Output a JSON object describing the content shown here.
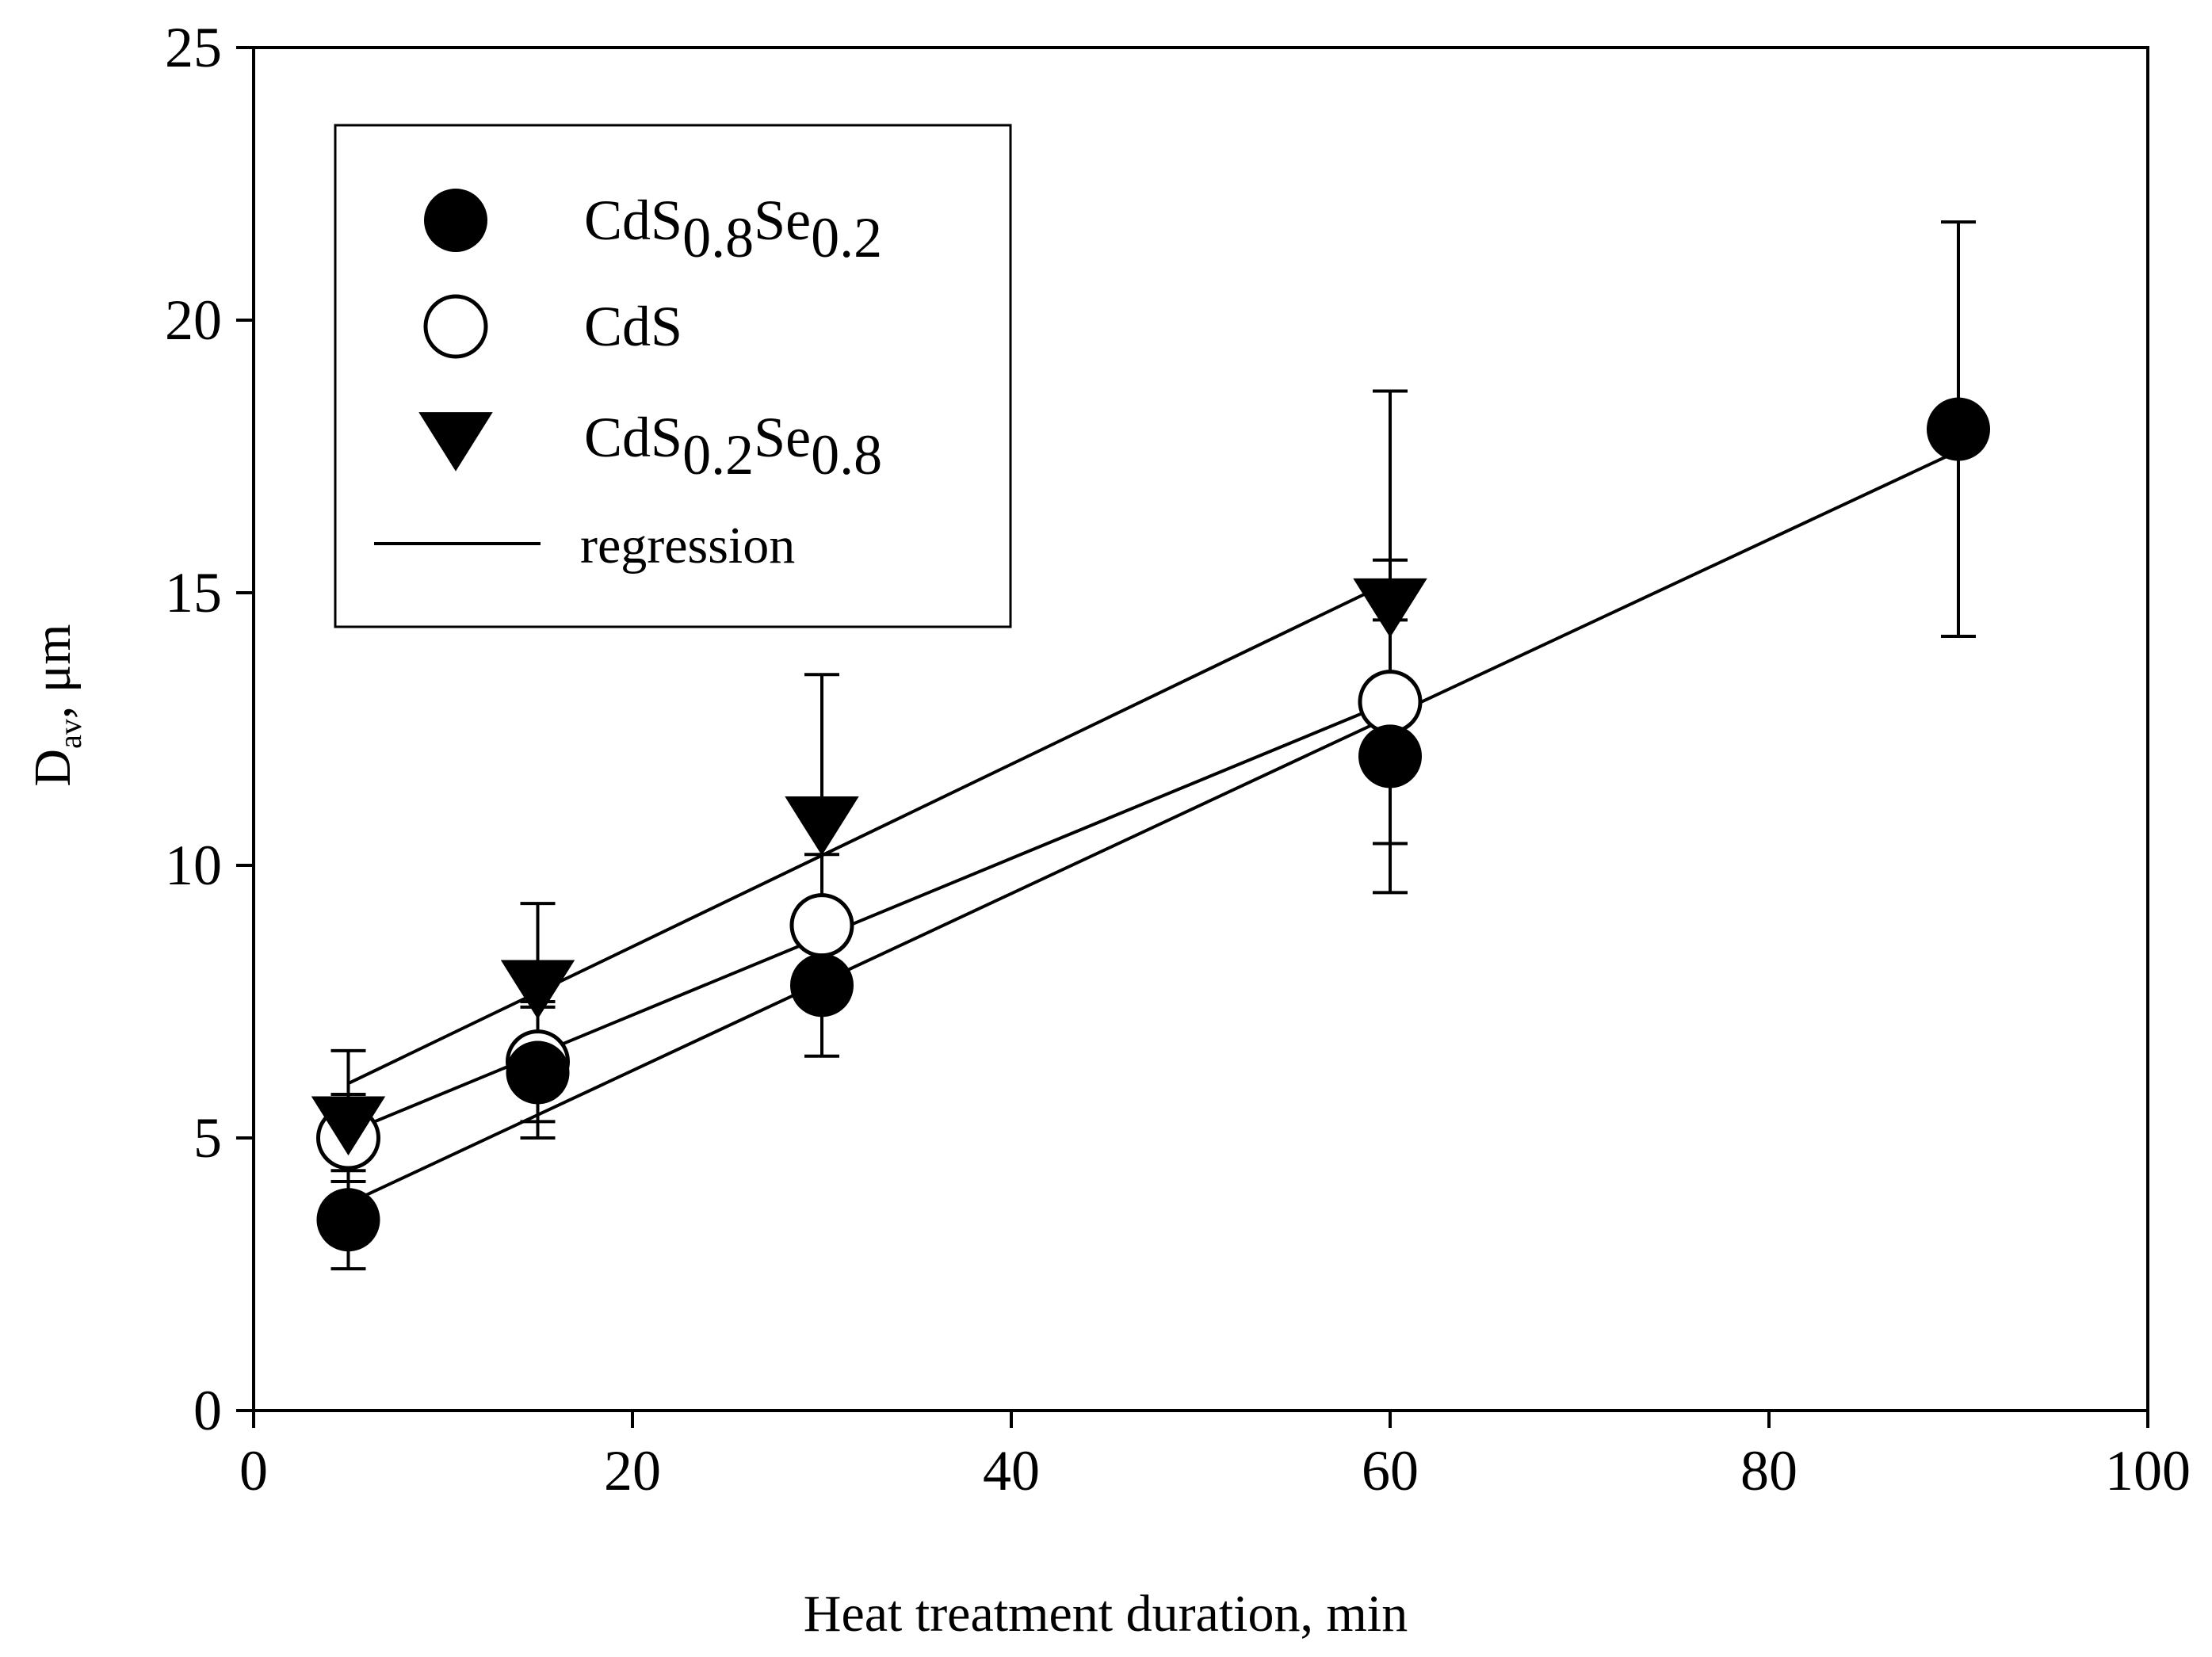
{
  "chart_data": {
    "type": "scatter",
    "title": "",
    "xlabel": "Heat treatment duration, min",
    "ylabel": {
      "main": "D",
      "sub": "av",
      "rest": ", μm"
    },
    "xlim": [
      0,
      100
    ],
    "ylim": [
      0,
      25
    ],
    "xticks": [
      0,
      20,
      40,
      60,
      80,
      100
    ],
    "yticks": [
      0,
      5,
      10,
      15,
      20,
      25
    ],
    "xtick_labels": [
      "0",
      "20",
      "40",
      "60",
      "80",
      "100"
    ],
    "ytick_labels": [
      "0",
      "5",
      "10",
      "15",
      "20",
      "25"
    ],
    "legend_position": "top-left",
    "series": [
      {
        "name": "CdS0.8Se0.2",
        "label_parts": [
          {
            "text": "CdS"
          },
          {
            "text": "0.8",
            "sub": true
          },
          {
            "text": "Se"
          },
          {
            "text": "0.2",
            "sub": true
          }
        ],
        "marker": "filled-circle",
        "x": [
          5,
          15,
          30,
          60,
          90
        ],
        "y": [
          3.5,
          6.2,
          7.8,
          12.0,
          18.0
        ],
        "err_low": [
          0.9,
          1.2,
          1.3,
          2.5,
          3.8
        ],
        "err_high": [
          0.9,
          1.2,
          1.3,
          2.5,
          3.8
        ],
        "regression": {
          "x": [
            5,
            90
          ],
          "y": [
            3.8,
            17.6
          ]
        }
      },
      {
        "name": "CdS",
        "label_parts": [
          {
            "text": "CdS"
          }
        ],
        "marker": "open-circle",
        "x": [
          5,
          15,
          30,
          60
        ],
        "y": [
          5.0,
          6.4,
          8.9,
          13.0
        ],
        "err_low": [
          0.8,
          1.1,
          1.3,
          2.6
        ],
        "err_high": [
          0.8,
          1.1,
          1.3,
          2.6
        ],
        "regression": {
          "x": [
            5,
            60
          ],
          "y": [
            5.1,
            13.0
          ]
        }
      },
      {
        "name": "CdS0.2Se0.8",
        "label_parts": [
          {
            "text": "CdS"
          },
          {
            "text": "0.2",
            "sub": true
          },
          {
            "text": "Se"
          },
          {
            "text": "0.8",
            "sub": true
          }
        ],
        "marker": "filled-triangle-down",
        "x": [
          5,
          15,
          30,
          60
        ],
        "y": [
          5.3,
          7.8,
          10.8,
          14.8
        ],
        "err_low": [
          0,
          0,
          0,
          0
        ],
        "err_high": [
          1.3,
          1.5,
          2.7,
          3.9
        ],
        "regression": {
          "x": [
            5,
            60
          ],
          "y": [
            6.0,
            15.2
          ]
        }
      }
    ],
    "legend_items": [
      {
        "label_parts": [
          {
            "text": "CdS"
          },
          {
            "text": "0.8",
            "sub": true
          },
          {
            "text": "Se"
          },
          {
            "text": "0.2",
            "sub": true
          }
        ],
        "marker": "filled-circle"
      },
      {
        "label_parts": [
          {
            "text": "CdS"
          }
        ],
        "marker": "open-circle"
      },
      {
        "label_parts": [
          {
            "text": "CdS"
          },
          {
            "text": "0.2",
            "sub": true
          },
          {
            "text": "Se"
          },
          {
            "text": "0.8",
            "sub": true
          }
        ],
        "marker": "filled-triangle-down"
      },
      {
        "label_parts": [
          {
            "text": "regression"
          }
        ],
        "marker": "line"
      }
    ]
  }
}
